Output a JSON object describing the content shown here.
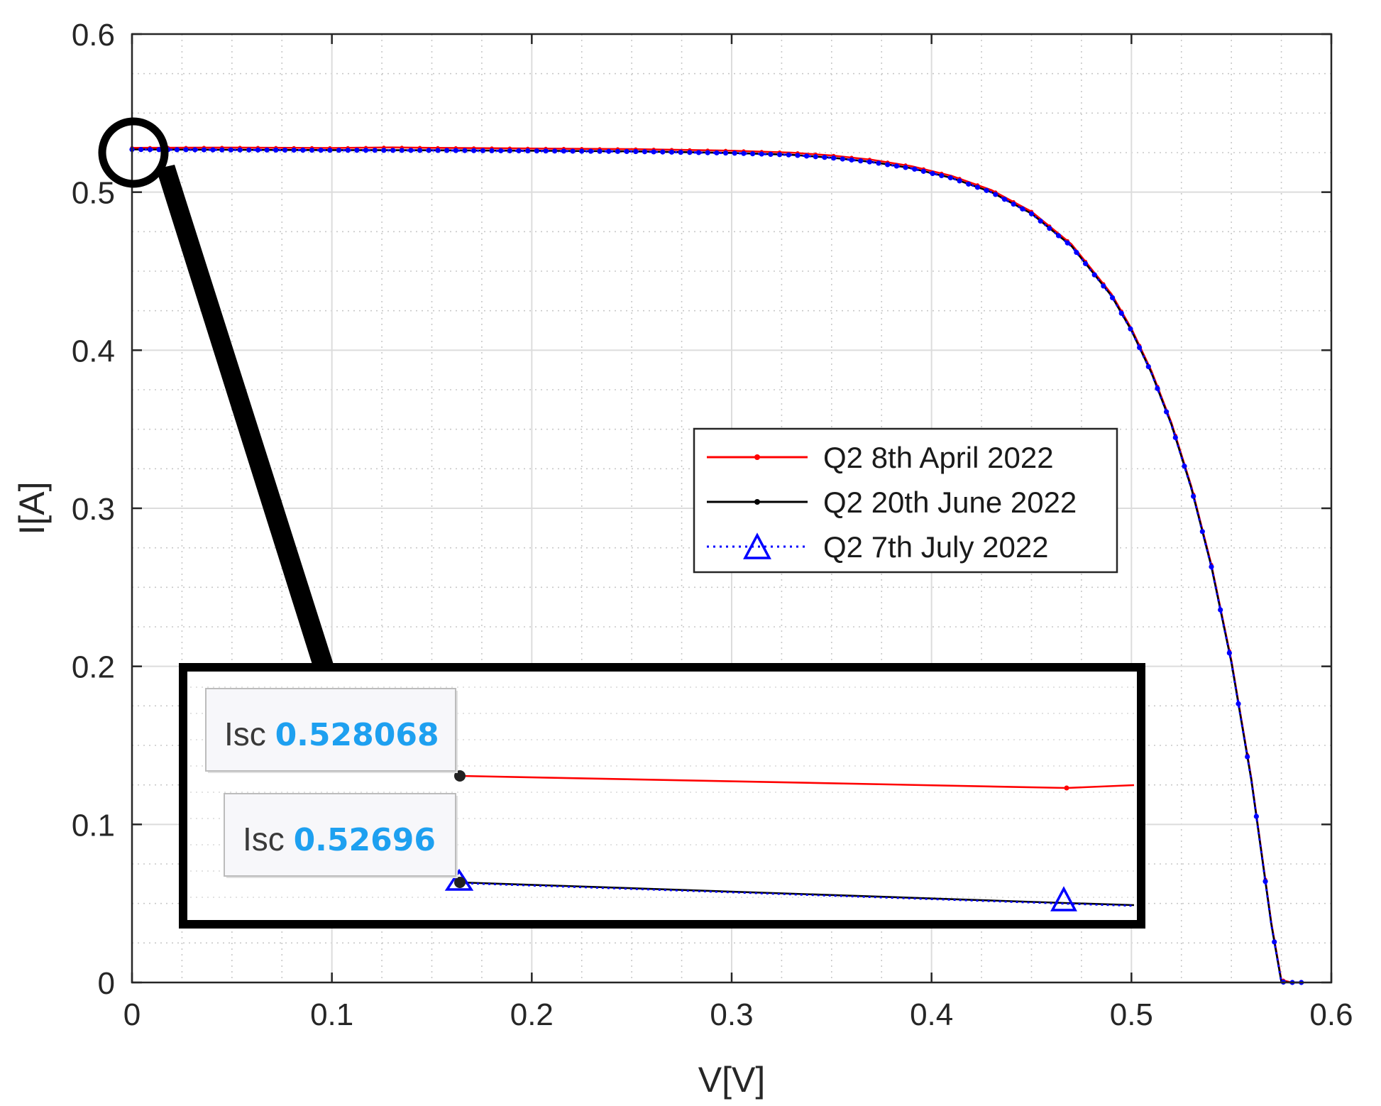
{
  "chart_data": {
    "type": "line",
    "xlabel": "V[V]",
    "ylabel": "I[A]",
    "xlim": [
      0,
      0.6
    ],
    "ylim": [
      0,
      0.6
    ],
    "x_ticks": [
      "0",
      "0.1",
      "0.2",
      "0.3",
      "0.4",
      "0.5",
      "0.6"
    ],
    "y_ticks": [
      "0",
      "0.1",
      "0.2",
      "0.3",
      "0.4",
      "0.5",
      "0.6"
    ],
    "grid": "major and minor (dotted)",
    "legend_position": "center-right",
    "series": [
      {
        "name": "Q2 8th April 2022",
        "color": "#ff0000",
        "line_style": "solid",
        "marker": "dot",
        "x": [
          0,
          0.05,
          0.1,
          0.13,
          0.15,
          0.2,
          0.25,
          0.3,
          0.33,
          0.35,
          0.37,
          0.39,
          0.41,
          0.43,
          0.45,
          0.47,
          0.49,
          0.5,
          0.51,
          0.52,
          0.53,
          0.54,
          0.55,
          0.56,
          0.57,
          0.575,
          0.58,
          0.585
        ],
        "y": [
          0.528,
          0.5282,
          0.5279,
          0.5283,
          0.528,
          0.5276,
          0.5272,
          0.5262,
          0.525,
          0.5232,
          0.5205,
          0.5164,
          0.5103,
          0.5013,
          0.4877,
          0.4671,
          0.4356,
          0.4137,
          0.3869,
          0.3541,
          0.3138,
          0.2643,
          0.2037,
          0.1291,
          0.0377,
          0.0016,
          0,
          0
        ]
      },
      {
        "name": "Q2 20th June 2022",
        "color": "#000000",
        "line_style": "solid",
        "marker": "dot",
        "x": [
          0,
          0.05,
          0.1,
          0.15,
          0.2,
          0.25,
          0.3,
          0.33,
          0.35,
          0.37,
          0.39,
          0.41,
          0.43,
          0.45,
          0.47,
          0.49,
          0.5,
          0.51,
          0.52,
          0.53,
          0.54,
          0.55,
          0.56,
          0.57,
          0.575,
          0.58,
          0.585
        ],
        "y": [
          0.527,
          0.5268,
          0.5266,
          0.5265,
          0.5262,
          0.5258,
          0.5248,
          0.5236,
          0.5218,
          0.5191,
          0.5151,
          0.509,
          0.5,
          0.4864,
          0.4659,
          0.4344,
          0.4125,
          0.3857,
          0.3529,
          0.3126,
          0.2631,
          0.2025,
          0.128,
          0.0366,
          0.0004,
          0,
          0
        ]
      },
      {
        "name": "Q2 7th July 2022",
        "color": "#0000ff",
        "line_style": "dotted",
        "marker": "triangle",
        "x": [
          0,
          0.05,
          0.1,
          0.15,
          0.2,
          0.25,
          0.3,
          0.33,
          0.35,
          0.37,
          0.39,
          0.41,
          0.43,
          0.45,
          0.47,
          0.49,
          0.5,
          0.51,
          0.52,
          0.53,
          0.54,
          0.55,
          0.56,
          0.57,
          0.575,
          0.58,
          0.585
        ],
        "y": [
          0.52696,
          0.5267,
          0.5265,
          0.5264,
          0.5261,
          0.5257,
          0.5247,
          0.5235,
          0.5217,
          0.519,
          0.515,
          0.5089,
          0.4999,
          0.4863,
          0.4658,
          0.4343,
          0.4124,
          0.3856,
          0.3528,
          0.3125,
          0.263,
          0.2024,
          0.1279,
          0.0365,
          0.0003,
          0,
          0
        ]
      }
    ],
    "inset": {
      "tooltips": [
        {
          "label": "Isc",
          "value": "0.528068"
        },
        {
          "label": "Isc",
          "value": "0.52696"
        }
      ]
    }
  }
}
